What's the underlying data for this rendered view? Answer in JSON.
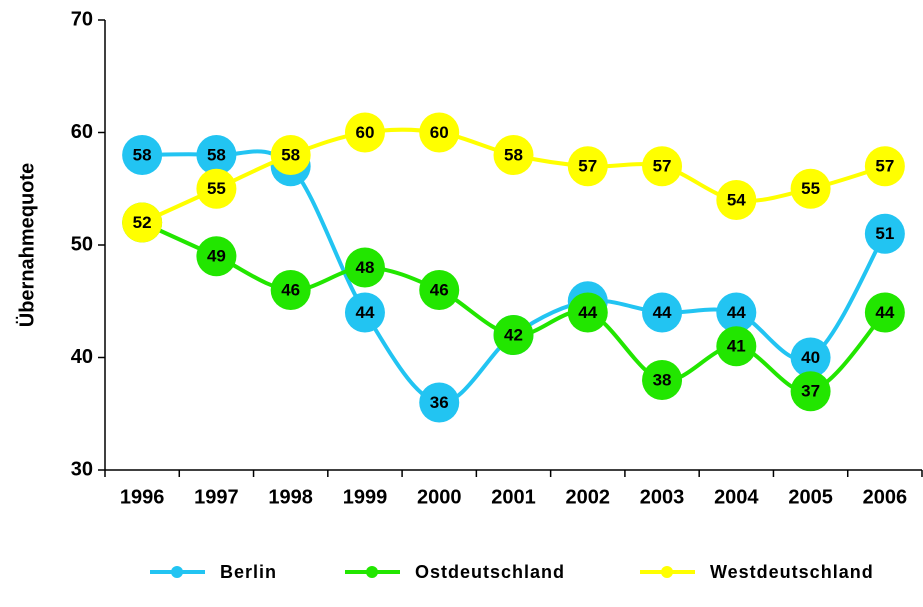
{
  "chart_data": {
    "type": "line",
    "y_label": "Übernahmequote",
    "categories": [
      "1996",
      "1997",
      "1998",
      "1999",
      "2000",
      "2001",
      "2002",
      "2003",
      "2004",
      "2005",
      "2006"
    ],
    "series": [
      {
        "name": "Berlin",
        "color": "#22c4f2",
        "values": [
          58,
          58,
          57,
          44,
          36,
          42,
          45,
          44,
          44,
          40,
          51
        ]
      },
      {
        "name": "Ostdeutschland",
        "color": "#22e600",
        "values": [
          52,
          49,
          46,
          48,
          46,
          42,
          44,
          38,
          41,
          37,
          44
        ]
      },
      {
        "name": "Westdeutschland",
        "color": "#ffff00",
        "values": [
          52,
          55,
          58,
          60,
          60,
          58,
          57,
          57,
          54,
          55,
          57
        ]
      }
    ],
    "ylim": [
      30,
      70
    ],
    "yticks": [
      30,
      40,
      50,
      60,
      70
    ],
    "grid": false,
    "legend": "bottom"
  }
}
